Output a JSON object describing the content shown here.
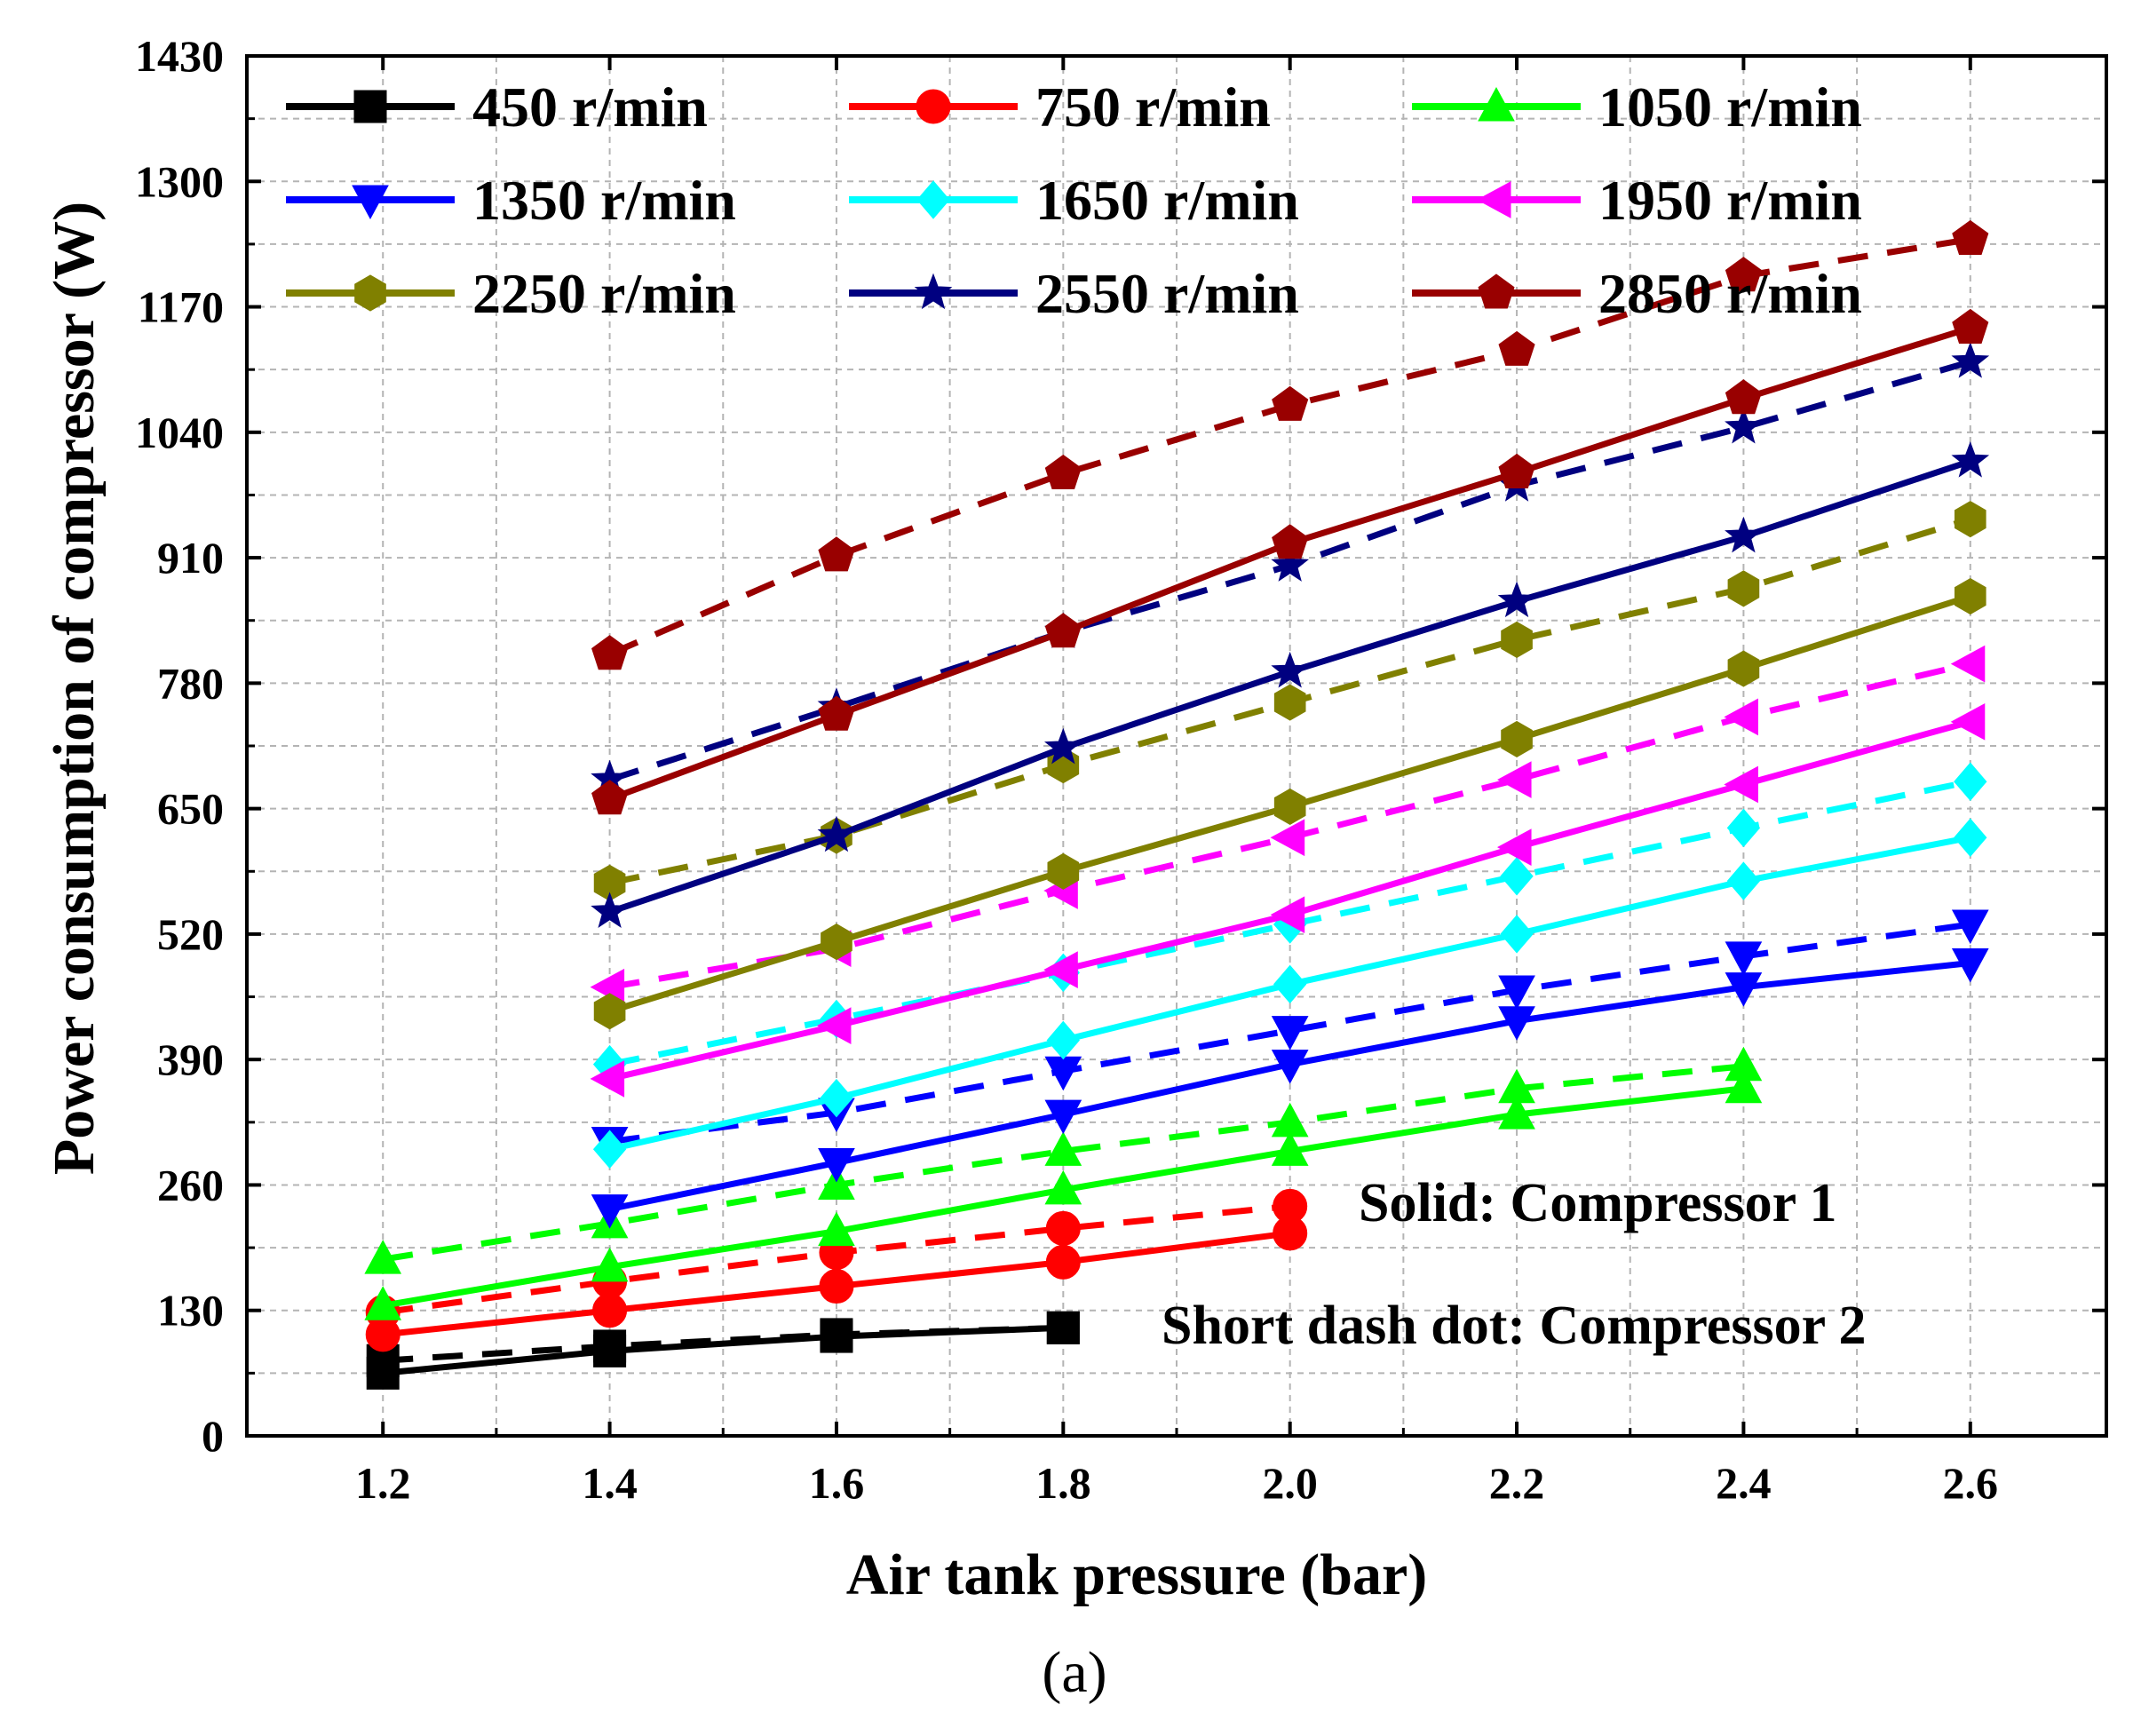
{
  "chart_data": {
    "type": "line",
    "title": "",
    "caption": "(a)",
    "xlabel": "Air tank pressure (bar)",
    "ylabel": "Power consumption of compressor (W)",
    "xlim": [
      1.08,
      2.72
    ],
    "ylim": [
      0,
      1430
    ],
    "xticks": [
      1.2,
      1.4,
      1.6,
      1.8,
      2.0,
      2.2,
      2.4,
      2.6
    ],
    "xtick_labels": [
      "1.2",
      "1.4",
      "1.6",
      "1.8",
      "2.0",
      "2.2",
      "2.4",
      "2.6"
    ],
    "yticks": [
      0,
      130,
      260,
      390,
      520,
      650,
      780,
      910,
      1040,
      1170,
      1300,
      1430
    ],
    "ytick_labels": [
      "0",
      "130",
      "260",
      "390",
      "520",
      "650",
      "780",
      "910",
      "1040",
      "1170",
      "1300",
      "1430"
    ],
    "grid": true,
    "legend_position": "top",
    "annotations": [
      "Solid: Compressor 1",
      "Short dash dot: Compressor 2"
    ],
    "series": [
      {
        "name": "450 r/min",
        "color": "#000000",
        "marker": "square",
        "solid": {
          "x": [
            1.2,
            1.4,
            1.6,
            1.8
          ],
          "y": [
            65,
            88,
            103,
            112
          ]
        },
        "dashed": {
          "x": [
            1.2,
            1.4,
            1.6,
            1.8
          ],
          "y": [
            78,
            93,
            105,
            112
          ]
        }
      },
      {
        "name": "750 r/min",
        "color": "#ff0000",
        "marker": "circle",
        "solid": {
          "x": [
            1.2,
            1.4,
            1.6,
            1.8,
            2.0
          ],
          "y": [
            105,
            130,
            155,
            180,
            210
          ]
        },
        "dashed": {
          "x": [
            1.2,
            1.4,
            1.6,
            1.8,
            2.0
          ],
          "y": [
            128,
            160,
            190,
            215,
            238
          ]
        }
      },
      {
        "name": "1050 r/min",
        "color": "#00ff00",
        "marker": "triangle-up",
        "solid": {
          "x": [
            1.2,
            1.4,
            1.6,
            1.8,
            2.0,
            2.2,
            2.4
          ],
          "y": [
            135,
            175,
            212,
            255,
            295,
            333,
            360
          ]
        },
        "dashed": {
          "x": [
            1.2,
            1.4,
            1.6,
            1.8,
            2.0,
            2.2,
            2.4
          ],
          "y": [
            183,
            220,
            260,
            295,
            325,
            360,
            383
          ]
        }
      },
      {
        "name": "1350 r/min",
        "color": "#0000ff",
        "marker": "triangle-down",
        "solid": {
          "x": [
            1.4,
            1.6,
            1.8,
            2.0,
            2.2,
            2.4,
            2.6
          ],
          "y": [
            235,
            283,
            333,
            385,
            430,
            465,
            490
          ]
        },
        "dashed": {
          "x": [
            1.4,
            1.6,
            1.8,
            2.0,
            2.2,
            2.4,
            2.6
          ],
          "y": [
            305,
            335,
            378,
            420,
            462,
            497,
            530
          ]
        }
      },
      {
        "name": "1650 r/min",
        "color": "#00ffff",
        "marker": "diamond",
        "solid": {
          "x": [
            1.4,
            1.6,
            1.8,
            2.0,
            2.2,
            2.4,
            2.6
          ],
          "y": [
            297,
            350,
            410,
            468,
            520,
            575,
            620
          ]
        },
        "dashed": {
          "x": [
            1.4,
            1.6,
            1.8,
            2.0,
            2.2,
            2.4,
            2.6
          ],
          "y": [
            385,
            432,
            480,
            530,
            580,
            630,
            678
          ]
        }
      },
      {
        "name": "1950 r/min",
        "color": "#ff00ff",
        "marker": "triangle-left",
        "solid": {
          "x": [
            1.4,
            1.6,
            1.8,
            2.0,
            2.2,
            2.4,
            2.6
          ],
          "y": [
            370,
            425,
            483,
            540,
            610,
            675,
            740
          ]
        },
        "dashed": {
          "x": [
            1.4,
            1.6,
            1.8,
            2.0,
            2.2,
            2.4,
            2.6
          ],
          "y": [
            465,
            505,
            565,
            620,
            680,
            745,
            800
          ]
        }
      },
      {
        "name": "2250 r/min",
        "color": "#808000",
        "marker": "hexagon",
        "solid": {
          "x": [
            1.4,
            1.6,
            1.8,
            2.0,
            2.2,
            2.4,
            2.6
          ],
          "y": [
            440,
            512,
            585,
            652,
            722,
            795,
            870
          ]
        },
        "dashed": {
          "x": [
            1.4,
            1.6,
            1.8,
            2.0,
            2.2,
            2.4,
            2.6
          ],
          "y": [
            573,
            622,
            695,
            760,
            825,
            878,
            950
          ]
        }
      },
      {
        "name": "2550 r/min",
        "color": "#000080",
        "marker": "star",
        "solid": {
          "x": [
            1.4,
            1.6,
            1.8,
            2.0,
            2.2,
            2.4,
            2.6
          ],
          "y": [
            543,
            622,
            713,
            792,
            865,
            932,
            1010
          ]
        },
        "dashed": {
          "x": [
            1.4,
            1.6,
            1.8,
            2.0,
            2.2,
            2.4,
            2.6
          ],
          "y": [
            680,
            755,
            833,
            902,
            985,
            1045,
            1113
          ]
        }
      },
      {
        "name": "2850 r/min",
        "color": "#990000",
        "marker": "pentagon",
        "solid": {
          "x": [
            1.4,
            1.6,
            1.8,
            2.0,
            2.2,
            2.4,
            2.6
          ],
          "y": [
            660,
            747,
            833,
            925,
            998,
            1075,
            1148
          ]
        },
        "dashed": {
          "x": [
            1.4,
            1.6,
            1.8,
            2.0,
            2.2,
            2.4,
            2.6
          ],
          "y": [
            810,
            912,
            997,
            1068,
            1125,
            1202,
            1240
          ]
        }
      }
    ]
  }
}
